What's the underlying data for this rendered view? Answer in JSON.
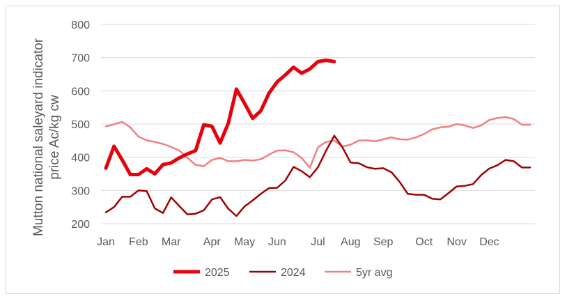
{
  "chart_data": {
    "type": "line",
    "title": "",
    "ylabel_line1": "Mutton national saleyard indicator",
    "ylabel_line2": "price Ac/kg cw",
    "xlabel": "",
    "ylim": [
      200,
      800
    ],
    "yticks": [
      200,
      300,
      400,
      500,
      600,
      700,
      800
    ],
    "x_months": [
      "Jan",
      "Feb",
      "Mar",
      "Apr",
      "May",
      "Jun",
      "Jul",
      "Aug",
      "Sep",
      "Oct",
      "Nov",
      "Dec"
    ],
    "x_month_weeks": [
      1,
      5,
      9,
      14,
      18,
      22,
      27,
      31,
      35,
      40,
      44,
      48
    ],
    "x_range_weeks": [
      1,
      53
    ],
    "grid": "horizontal",
    "legend_position": "bottom",
    "series": [
      {
        "name": "2025",
        "color": "#e8000b",
        "width": 5,
        "x": [
          1,
          2,
          3,
          4,
          5,
          6,
          7,
          8,
          9,
          10,
          11,
          12,
          13,
          14,
          15,
          16,
          17,
          18,
          19,
          20,
          21,
          22,
          23,
          24,
          25,
          26,
          27,
          28,
          29
        ],
        "values": [
          367,
          433,
          392,
          348,
          348,
          365,
          350,
          378,
          383,
          398,
          410,
          420,
          498,
          493,
          443,
          502,
          605,
          562,
          517,
          540,
          593,
          627,
          648,
          671,
          653,
          666,
          688,
          692,
          688
        ]
      },
      {
        "name": "2024",
        "color": "#a00000",
        "width": 2.5,
        "x": [
          1,
          2,
          3,
          4,
          5,
          6,
          7,
          8,
          9,
          10,
          11,
          12,
          13,
          14,
          15,
          16,
          17,
          18,
          19,
          20,
          21,
          22,
          23,
          24,
          25,
          26,
          27,
          28,
          29,
          30,
          31,
          32,
          33,
          34,
          35,
          36,
          37,
          38,
          39,
          40,
          41,
          42,
          43,
          44,
          45,
          46,
          47,
          48,
          49,
          50,
          51,
          52,
          53
        ],
        "values": [
          234,
          250,
          281,
          281,
          300,
          298,
          246,
          232,
          279,
          253,
          228,
          230,
          240,
          273,
          280,
          245,
          223,
          252,
          270,
          290,
          307,
          308,
          330,
          371,
          358,
          340,
          370,
          420,
          465,
          430,
          384,
          382,
          370,
          365,
          367,
          355,
          326,
          290,
          287,
          287,
          275,
          273,
          292,
          312,
          314,
          319,
          346,
          366,
          376,
          392,
          388,
          369,
          369
        ]
      },
      {
        "name": "5yr avg",
        "color": "#f08080",
        "width": 2.5,
        "x": [
          1,
          2,
          3,
          4,
          5,
          6,
          7,
          8,
          9,
          10,
          11,
          12,
          13,
          14,
          15,
          16,
          17,
          18,
          19,
          20,
          21,
          22,
          23,
          24,
          25,
          26,
          27,
          28,
          29,
          30,
          31,
          32,
          33,
          34,
          35,
          36,
          37,
          38,
          39,
          40,
          41,
          42,
          43,
          44,
          45,
          46,
          47,
          48,
          49,
          50,
          51,
          52,
          53
        ],
        "values": [
          493,
          499,
          507,
          490,
          462,
          451,
          446,
          440,
          431,
          420,
          398,
          377,
          373,
          392,
          398,
          388,
          388,
          392,
          390,
          394,
          408,
          420,
          421,
          415,
          398,
          368,
          430,
          446,
          450,
          432,
          438,
          450,
          451,
          448,
          454,
          460,
          454,
          453,
          460,
          470,
          484,
          490,
          492,
          500,
          496,
          488,
          496,
          512,
          518,
          521,
          515,
          498,
          498
        ]
      }
    ]
  }
}
